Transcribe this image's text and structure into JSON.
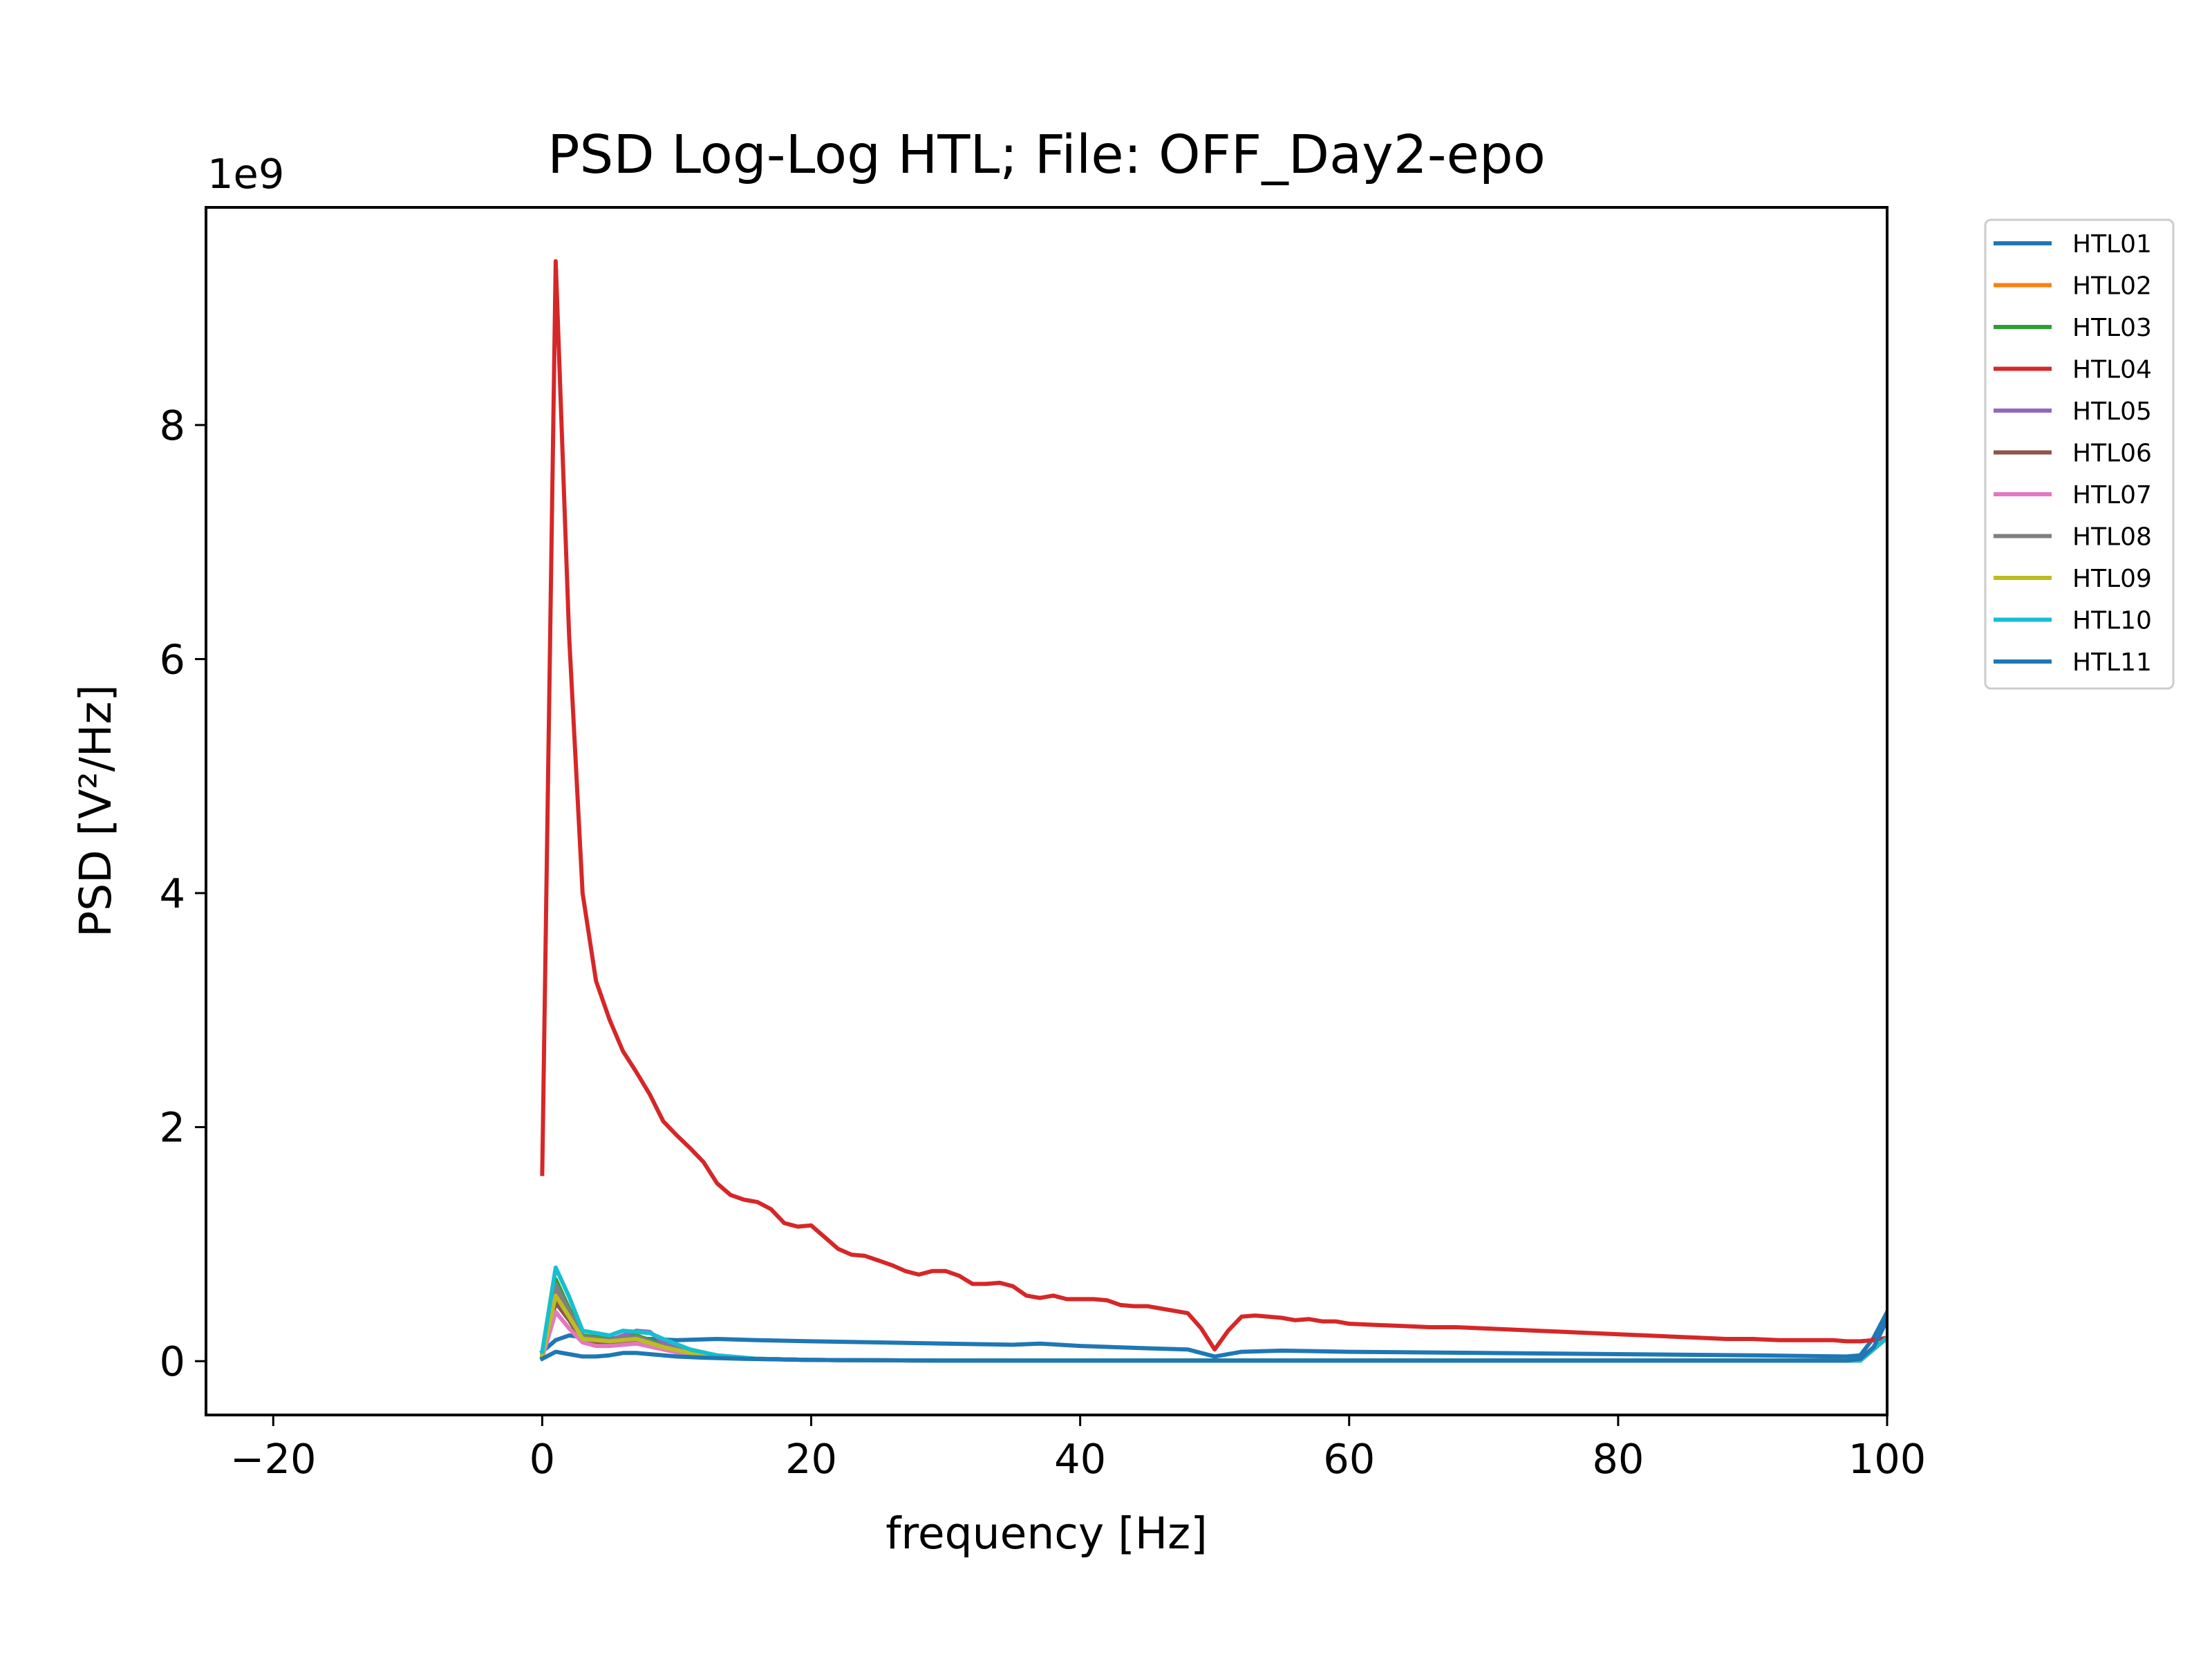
{
  "chart_data": {
    "type": "line",
    "title": "PSD Log-Log HTL; File: OFF_Day2-epo",
    "xlabel": "frequency [Hz]",
    "ylabel": "PSD [V²/Hz]",
    "y_offset_text": "1e9",
    "xlim": [
      -25,
      100
    ],
    "ylim": [
      -0.46,
      9.86
    ],
    "xticks": [
      -20,
      0,
      20,
      40,
      60,
      80,
      100
    ],
    "xtick_labels": [
      "−20",
      "0",
      "20",
      "40",
      "60",
      "80",
      "100"
    ],
    "yticks": [
      0,
      2,
      4,
      6,
      8
    ],
    "ytick_labels": [
      "0",
      "2",
      "4",
      "6",
      "8"
    ],
    "legend_position": "outside-right-top",
    "grid": false,
    "series": [
      {
        "name": "HTL01",
        "color": "#1f77b4",
        "x": [
          0,
          1,
          2,
          4,
          6,
          8,
          10,
          13,
          16,
          20,
          25,
          30,
          35,
          37,
          40,
          45,
          48,
          50,
          52,
          55,
          60,
          70,
          80,
          90,
          97,
          98,
          99,
          100
        ],
        "y": [
          0.08,
          0.18,
          0.22,
          0.19,
          0.2,
          0.19,
          0.18,
          0.19,
          0.18,
          0.17,
          0.16,
          0.15,
          0.14,
          0.15,
          0.13,
          0.11,
          0.1,
          0.04,
          0.08,
          0.09,
          0.08,
          0.07,
          0.06,
          0.05,
          0.04,
          0.05,
          0.2,
          0.42
        ]
      },
      {
        "name": "HTL02",
        "color": "#ff7f0e",
        "x": [
          0,
          1,
          2,
          3,
          5,
          7,
          9,
          11,
          13,
          16,
          20,
          30,
          50,
          70,
          90,
          98,
          100
        ],
        "y": [
          0.05,
          0.62,
          0.42,
          0.2,
          0.17,
          0.19,
          0.12,
          0.07,
          0.04,
          0.02,
          0.01,
          0.005,
          0.005,
          0.005,
          0.005,
          0.005,
          0.2
        ]
      },
      {
        "name": "HTL03",
        "color": "#2ca02c",
        "x": [
          0,
          1,
          2,
          3,
          5,
          7,
          9,
          11,
          13,
          16,
          20,
          30,
          50,
          70,
          90,
          98,
          100
        ],
        "y": [
          0.06,
          0.7,
          0.45,
          0.22,
          0.19,
          0.22,
          0.14,
          0.08,
          0.04,
          0.02,
          0.01,
          0.005,
          0.005,
          0.005,
          0.005,
          0.005,
          0.2
        ]
      },
      {
        "name": "HTL04",
        "color": "#d62728",
        "x": [
          0,
          1,
          2,
          3,
          4,
          5,
          6,
          7,
          8,
          9,
          10,
          11,
          12,
          13,
          14,
          15,
          16,
          17,
          18,
          19,
          20,
          21,
          22,
          23,
          24,
          25,
          26,
          27,
          28,
          29,
          30,
          31,
          32,
          33,
          34,
          35,
          36,
          37,
          38,
          39,
          40,
          41,
          42,
          43,
          44,
          45,
          46,
          47,
          48,
          49,
          50,
          51,
          52,
          53,
          54,
          55,
          56,
          57,
          58,
          59,
          60,
          62,
          64,
          66,
          68,
          70,
          72,
          74,
          76,
          78,
          80,
          82,
          84,
          86,
          88,
          90,
          92,
          94,
          96,
          97,
          98,
          99,
          100
        ],
        "y": [
          1.6,
          9.4,
          6.2,
          4.0,
          3.25,
          2.92,
          2.65,
          2.47,
          2.28,
          2.05,
          1.93,
          1.82,
          1.7,
          1.52,
          1.42,
          1.38,
          1.36,
          1.3,
          1.18,
          1.15,
          1.16,
          1.06,
          0.96,
          0.91,
          0.9,
          0.86,
          0.82,
          0.77,
          0.74,
          0.77,
          0.77,
          0.73,
          0.66,
          0.66,
          0.67,
          0.64,
          0.56,
          0.54,
          0.56,
          0.53,
          0.53,
          0.53,
          0.52,
          0.48,
          0.47,
          0.47,
          0.45,
          0.43,
          0.41,
          0.28,
          0.1,
          0.26,
          0.38,
          0.39,
          0.38,
          0.37,
          0.35,
          0.36,
          0.34,
          0.34,
          0.32,
          0.31,
          0.3,
          0.29,
          0.29,
          0.28,
          0.27,
          0.26,
          0.25,
          0.24,
          0.23,
          0.22,
          0.21,
          0.2,
          0.19,
          0.19,
          0.18,
          0.18,
          0.18,
          0.17,
          0.17,
          0.18,
          0.2
        ]
      },
      {
        "name": "HTL05",
        "color": "#9467bd",
        "x": [
          0,
          1,
          2,
          3,
          5,
          7,
          8,
          9,
          11,
          13,
          16,
          20,
          30,
          50,
          70,
          90,
          98,
          100
        ],
        "y": [
          0.05,
          0.58,
          0.4,
          0.2,
          0.18,
          0.26,
          0.25,
          0.16,
          0.08,
          0.04,
          0.02,
          0.01,
          0.005,
          0.005,
          0.005,
          0.005,
          0.005,
          0.2
        ]
      },
      {
        "name": "HTL06",
        "color": "#8c564b",
        "x": [
          0,
          1,
          2,
          3,
          5,
          7,
          9,
          11,
          13,
          16,
          20,
          30,
          50,
          70,
          90,
          98,
          100
        ],
        "y": [
          0.04,
          0.5,
          0.35,
          0.17,
          0.15,
          0.17,
          0.11,
          0.06,
          0.03,
          0.02,
          0.01,
          0.005,
          0.005,
          0.005,
          0.005,
          0.005,
          0.2
        ]
      },
      {
        "name": "HTL07",
        "color": "#e377c2",
        "x": [
          0,
          1,
          2,
          3,
          4,
          5,
          7,
          9,
          11,
          13,
          16,
          20,
          30,
          50,
          70,
          90,
          98,
          100
        ],
        "y": [
          0.03,
          0.42,
          0.28,
          0.16,
          0.13,
          0.13,
          0.15,
          0.1,
          0.05,
          0.03,
          0.02,
          0.01,
          0.005,
          0.005,
          0.005,
          0.005,
          0.005,
          0.2
        ]
      },
      {
        "name": "HTL08",
        "color": "#7f7f7f",
        "x": [
          0,
          1,
          2,
          3,
          5,
          7,
          9,
          11,
          13,
          16,
          20,
          30,
          50,
          70,
          90,
          98,
          100
        ],
        "y": [
          0.05,
          0.66,
          0.43,
          0.21,
          0.18,
          0.21,
          0.13,
          0.07,
          0.04,
          0.02,
          0.01,
          0.005,
          0.005,
          0.005,
          0.005,
          0.005,
          0.2
        ]
      },
      {
        "name": "HTL09",
        "color": "#bcbd22",
        "x": [
          0,
          1,
          2,
          3,
          5,
          7,
          9,
          11,
          13,
          16,
          20,
          30,
          50,
          70,
          90,
          98,
          100
        ],
        "y": [
          0.05,
          0.56,
          0.38,
          0.19,
          0.17,
          0.19,
          0.12,
          0.07,
          0.04,
          0.02,
          0.01,
          0.005,
          0.005,
          0.005,
          0.005,
          0.005,
          0.2
        ]
      },
      {
        "name": "HTL10",
        "color": "#17becf",
        "x": [
          0,
          1,
          2,
          3,
          5,
          6,
          7,
          8,
          9,
          11,
          13,
          16,
          20,
          30,
          50,
          70,
          90,
          98,
          100
        ],
        "y": [
          0.08,
          0.8,
          0.55,
          0.26,
          0.22,
          0.26,
          0.25,
          0.24,
          0.19,
          0.1,
          0.05,
          0.02,
          0.01,
          0.005,
          0.005,
          0.005,
          0.005,
          0.005,
          0.2
        ]
      },
      {
        "name": "HTL11",
        "color": "#1f77b4",
        "x": [
          0,
          1,
          2,
          3,
          4,
          5,
          6,
          7,
          8,
          10,
          12,
          15,
          20,
          30,
          40,
          50,
          60,
          70,
          80,
          90,
          97,
          98,
          99,
          100
        ],
        "y": [
          0.02,
          0.08,
          0.06,
          0.04,
          0.04,
          0.05,
          0.07,
          0.07,
          0.06,
          0.04,
          0.03,
          0.02,
          0.01,
          0.005,
          0.005,
          0.005,
          0.005,
          0.005,
          0.005,
          0.005,
          0.005,
          0.02,
          0.12,
          0.35
        ]
      }
    ]
  }
}
